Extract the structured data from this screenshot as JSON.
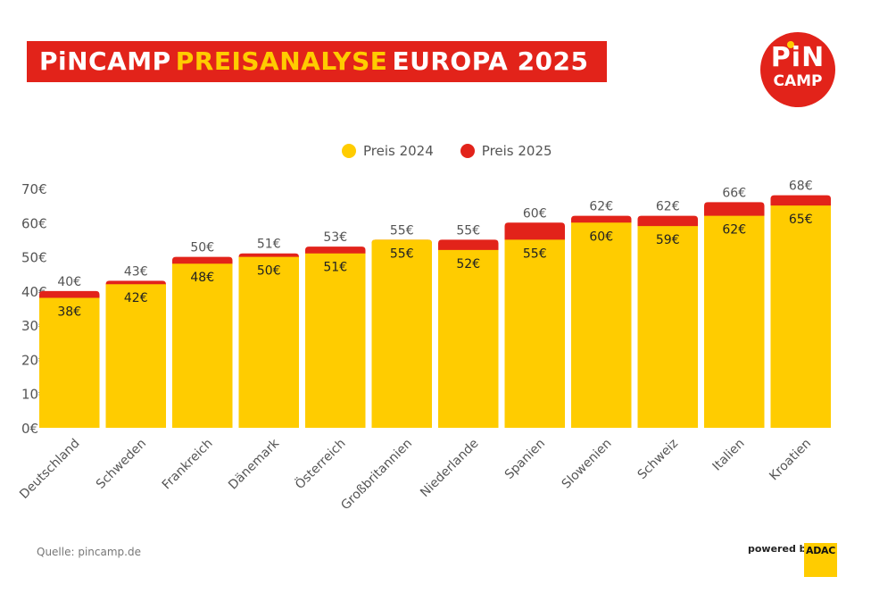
{
  "header": {
    "title_part1": "PiNCAMP",
    "title_part2": "PREISANALYSE",
    "title_part3": "EUROPA 2025",
    "logo_line1": "PiN",
    "logo_line2": "CAMP"
  },
  "colors": {
    "brand_red": "#e2231a",
    "brand_yellow": "#ffcc00"
  },
  "footer": {
    "source": "Quelle: pincamp.de",
    "powered_by": "powered by",
    "partner": "ADAC"
  },
  "chart_data": {
    "type": "bar",
    "stacked": "overlay",
    "title": "PiNCAMP PREISANALYSE EUROPA 2025",
    "xlabel": "",
    "ylabel": "",
    "ylim": [
      0,
      70
    ],
    "yticks": [
      0,
      10,
      20,
      30,
      40,
      50,
      60,
      70
    ],
    "ytick_labels": [
      "0€",
      "10€",
      "20€",
      "30€",
      "40€",
      "50€",
      "60€",
      "70€"
    ],
    "grid": false,
    "legend_position": "top-center",
    "categories": [
      "Deutschland",
      "Schweden",
      "Frankreich",
      "Dänemark",
      "Österreich",
      "Großbritannien",
      "Niederlande",
      "Spanien",
      "Slowenien",
      "Schweiz",
      "Italien",
      "Kroatien"
    ],
    "series": [
      {
        "name": "Preis 2024",
        "color": "#ffcc00",
        "values": [
          38,
          42,
          48,
          50,
          51,
          55,
          52,
          55,
          60,
          59,
          62,
          65
        ],
        "labels": [
          "38€",
          "42€",
          "48€",
          "50€",
          "51€",
          "55€",
          "52€",
          "55€",
          "60€",
          "59€",
          "62€",
          "65€"
        ]
      },
      {
        "name": "Preis 2025",
        "color": "#e2231a",
        "values": [
          40,
          43,
          50,
          51,
          53,
          55,
          55,
          60,
          62,
          62,
          66,
          68
        ],
        "labels": [
          "40€",
          "43€",
          "50€",
          "51€",
          "53€",
          "55€",
          "55€",
          "60€",
          "62€",
          "62€",
          "66€",
          "68€"
        ]
      }
    ]
  }
}
